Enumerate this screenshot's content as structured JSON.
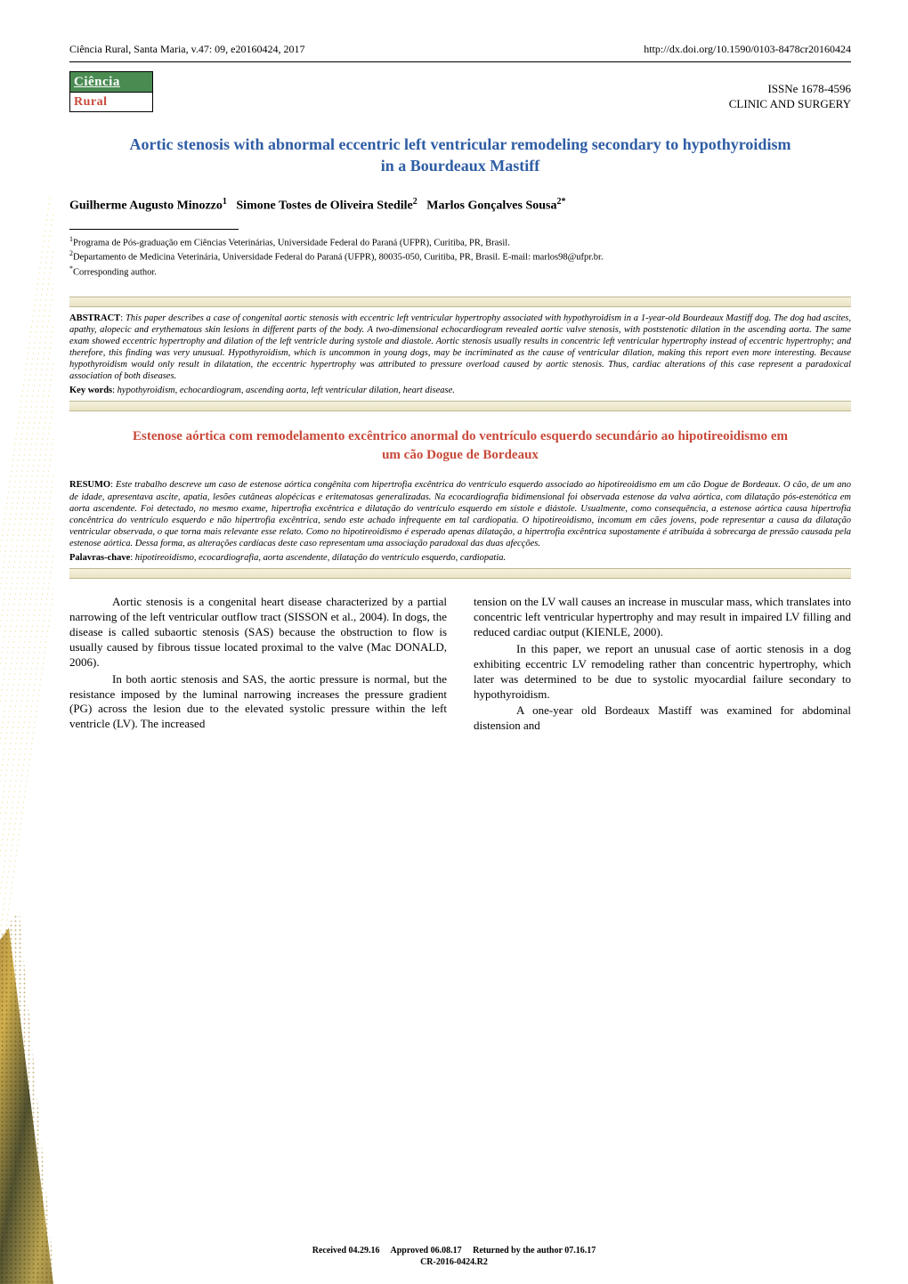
{
  "toprow": {
    "left": "Ciência Rural, Santa Maria, v.47: 09, e20160424, 2017",
    "doi": "http://dx.doi.org/10.1590/0103-8478cr20160424"
  },
  "catrow": {
    "logo_top": "Ciência",
    "logo_bot": "Rural",
    "issn": "ISSNe 1678-4596",
    "category": "CLINIC AND SURGERY"
  },
  "title": "Aortic stenosis with abnormal eccentric left ventricular remodeling secondary to hypothyroidism in a Bourdeaux Mastiff",
  "authors_html": "Guilherme Augusto Minozzo<sup>1</sup>  Simone Tostes de Oliveira Stedile<sup>2</sup>  Marlos Gonçalves Sousa<sup>2*</sup>",
  "affils": {
    "l1_sup": "1",
    "l1": "Programa de Pós-graduação em Ciências Veterinárias, Universidade Federal do Paraná (UFPR), Curitiba, PR, Brasil.",
    "l2_sup": "2",
    "l2": "Departamento de Medicina Veterinária, Universidade Federal do Paraná (UFPR), 80035-050, Curitiba, PR, Brasil. E-mail: marlos98@ufpr.br.",
    "l3_sup": "*",
    "l3": "Corresponding author."
  },
  "abstract_en": {
    "head": "ABSTRACT",
    "body": "This paper describes a case of congenital aortic stenosis with eccentric left ventricular hypertrophy associated with hypothyroidism in a 1-year-old Bourdeaux Mastiff dog. The dog had ascites, apathy, alopecic and erythematous skin lesions in different parts of the body. A two-dimensional echocardiogram revealed aortic valve stenosis, with poststenotic dilation in the ascending aorta. The same exam showed eccentric hypertrophy and dilation of the left ventricle during systole and diastole. Aortic stenosis usually results in concentric left ventricular hypertrophy instead of eccentric hypertrophy; and therefore, this finding was very unusual. Hypothyroidism, which is uncommon in young dogs, may be incriminated as the cause of ventricular dilation, making this report even more interesting. Because hypothyroidism would only result in dilatation, the eccentric hypertrophy was attributed to pressure overload caused by aortic stenosis. Thus, cardiac alterations of this case represent a paradoxical association of both diseases."
  },
  "keywords_en": {
    "head": "Key words",
    "body": "hypothyroidism, echocardiogram, ascending aorta, left ventricular dilation, heart disease."
  },
  "subtitle_pt": "Estenose aórtica com remodelamento excêntrico anormal do ventrículo esquerdo secundário ao hipotireoidismo em um cão Dogue de Bordeaux",
  "abstract_pt": {
    "head": "RESUMO",
    "body": "Este trabalho descreve um caso de estenose aórtica congênita com hipertrofia excêntrica do ventrículo esquerdo associado ao hipotireoidismo em um cão Dogue de Bordeaux. O cão, de um ano de idade, apresentava ascite, apatia, lesões cutâneas alopécicas e eritematosas generalizadas. Na ecocardiografia bidimensional foi observada estenose da valva aórtica, com dilatação pós-estenótica em aorta ascendente. Foi detectado, no mesmo exame, hipertrofia excêntrica e dilatação do ventrículo esquerdo em sístole e diástole. Usualmente, como consequência, a estenose aórtica causa hipertrofia concêntrica do ventrículo esquerdo e não hipertrofia excêntrica, sendo este achado infrequente em tal cardiopatia. O hipotireoidismo, incomum em cães jovens, pode representar a causa da dilatação ventricular observada, o que torna mais relevante esse relato. Como no hipotireoidismo é esperado apenas dilatação, a hipertrofia excêntrica supostamente é atribuída à sobrecarga de pressão causada pela estenose aórtica. Dessa forma, as alterações cardíacas deste caso representam uma associação paradoxal das duas afecções."
  },
  "keywords_pt": {
    "head": "Palavras-chave",
    "body": "hipotireoidismo, ecocardiografia, aorta ascendente, dilatação do ventrículo esquerdo, cardiopatia."
  },
  "body": {
    "col1": {
      "p1": "Aortic stenosis is a congenital heart disease characterized by a partial narrowing of the left ventricular outflow tract (SISSON et al., 2004). In dogs, the disease is called subaortic stenosis (SAS) because the obstruction to flow is usually caused by fibrous tissue located proximal to the valve (Mac DONALD, 2006).",
      "p2": "In both aortic stenosis and SAS, the aortic pressure is normal, but the resistance imposed by the luminal narrowing increases the pressure gradient (PG) across the lesion due to the elevated systolic pressure within the left ventricle (LV). The increased"
    },
    "col2": {
      "p1": "tension on the LV wall causes an increase in muscular mass, which translates into concentric left ventricular hypertrophy and may result in impaired LV filling and reduced cardiac output (KIENLE, 2000).",
      "p2": "In this paper, we report an unusual case of aortic stenosis in a dog exhibiting eccentric LV remodeling rather than concentric hypertrophy, which later was determined to be due to systolic myocardial failure secondary to hypothyroidism.",
      "p3": "A one-year old Bordeaux Mastiff was examined for abdominal distension and"
    }
  },
  "footer": {
    "l1": "Received 04.29.16  Approved 06.08.17  Returned by the author 07.16.17",
    "l2": "CR-2016-0424.R2"
  },
  "colors": {
    "title_blue": "#2f5da5",
    "subtitle_red": "#c8493a",
    "logo_green": "#4a8b52",
    "logo_red": "#c84a3a"
  }
}
